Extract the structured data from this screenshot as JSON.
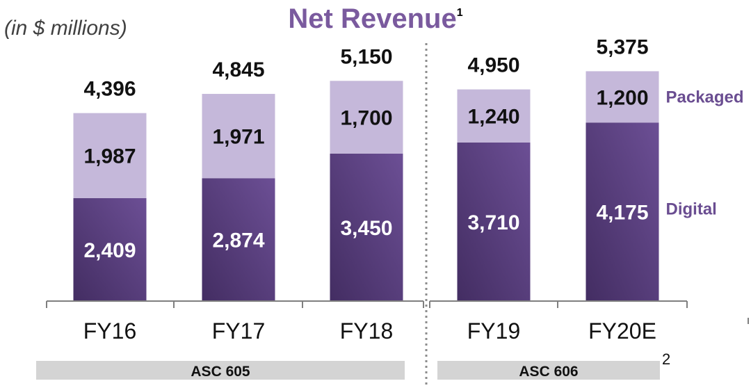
{
  "chart_data": {
    "type": "bar",
    "stacked": true,
    "title": "Net Revenue",
    "title_superscript": "1",
    "unit_note": "(in $ millions)",
    "categories": [
      "FY16",
      "FY17",
      "FY18",
      "FY19",
      "FY20E"
    ],
    "series": [
      {
        "name": "Digital",
        "values": [
          2409,
          2874,
          3450,
          3710,
          4175
        ],
        "labels": [
          "2,409",
          "2,874",
          "3,450",
          "3,710",
          "4,175"
        ],
        "color": "#5e4285"
      },
      {
        "name": "Packaged",
        "values": [
          1987,
          1971,
          1700,
          1240,
          1200
        ],
        "labels": [
          "1,987",
          "1,971",
          "1,700",
          "1,240",
          "1,200"
        ],
        "color": "#c5b8da"
      }
    ],
    "totals": [
      "4,396",
      "4,845",
      "5,150",
      "4,950",
      "5,375"
    ],
    "groups": [
      {
        "label": "ASC 605",
        "categories": [
          "FY16",
          "FY17",
          "FY18"
        ]
      },
      {
        "label": "ASC 606",
        "categories": [
          "FY19",
          "FY20E"
        ]
      }
    ],
    "group_footnote": "2",
    "grid": false,
    "legend_placement": "right, inline with segments"
  },
  "colors": {
    "title": "#7a5a9e",
    "legend_text": "#6a4d91",
    "digital_dark": "#432d62",
    "digital_light": "#6c4f95",
    "packaged": "#c5b8da",
    "group_bar": "#d4d4d4",
    "axis": "#7f7f7f",
    "divider": "#8c8c8c"
  }
}
